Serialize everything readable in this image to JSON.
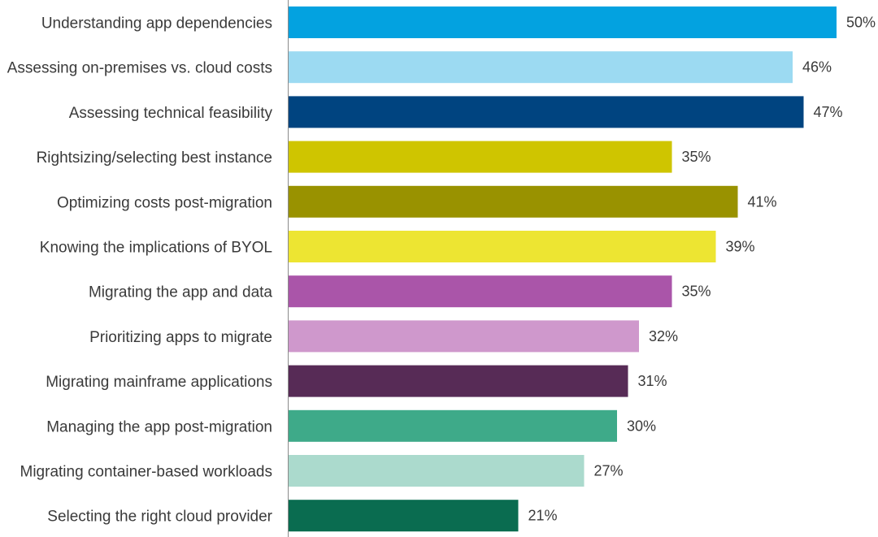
{
  "chart_data": {
    "type": "bar",
    "orientation": "horizontal",
    "title": "",
    "xlabel": "",
    "ylabel": "",
    "xlim": [
      0,
      50
    ],
    "grid": false,
    "legend": "none",
    "categories": [
      "Understanding app dependencies",
      "Assessing on-premises vs. cloud costs",
      "Assessing technical feasibility",
      "Rightsizing/selecting best instance",
      "Optimizing costs post-migration",
      "Knowing the implications of BYOL",
      "Migrating the app and data",
      "Prioritizing apps to migrate",
      "Migrating mainframe applications",
      "Managing the app post-migration",
      "Migrating container-based workloads",
      "Selecting the right cloud provider"
    ],
    "values": [
      50,
      46,
      47,
      35,
      41,
      39,
      35,
      32,
      31,
      30,
      27,
      21
    ],
    "value_labels": [
      "50%",
      "46%",
      "47%",
      "35%",
      "41%",
      "39%",
      "35%",
      "32%",
      "31%",
      "30%",
      "27%",
      "21%"
    ],
    "colors": [
      "#03a2e0",
      "#9cdaf2",
      "#004480",
      "#cfc500",
      "#999200",
      "#ede532",
      "#aa55a9",
      "#cf98cc",
      "#572b56",
      "#3eaa89",
      "#abdacd",
      "#0a6c50"
    ],
    "axis_color": "#8a8a8a"
  }
}
